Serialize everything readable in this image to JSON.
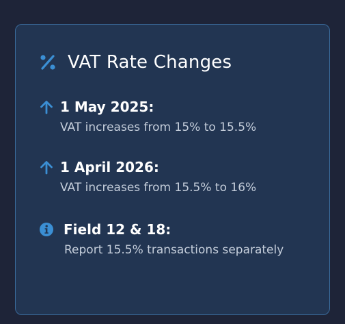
{
  "card": {
    "title": "VAT Rate Changes",
    "title_icon": "percent-icon",
    "items": [
      {
        "icon": "arrow-up-icon",
        "label": "1 May 2025:",
        "description": "VAT increases from 15% to 15.5%"
      },
      {
        "icon": "arrow-up-icon",
        "label": "1 April 2026:",
        "description": "VAT increases from 15.5% to 16%"
      },
      {
        "icon": "info-circle-icon",
        "label": "Field 12 & 18:",
        "description": "Report 15.5% transactions separately"
      }
    ]
  },
  "colors": {
    "background": "#1e2438",
    "card_background": "#223552",
    "card_border": "#3a6a9a",
    "accent": "#3b8fd4",
    "title_text": "#ffffff",
    "body_text": "#c5cedb"
  }
}
